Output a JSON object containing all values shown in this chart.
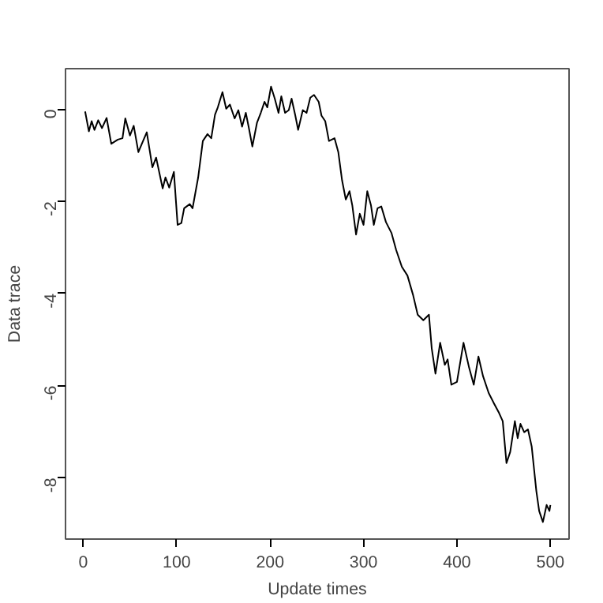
{
  "chart_data": {
    "type": "line",
    "xlabel": "Update times",
    "ylabel": "Data trace",
    "xlim": [
      -19,
      520
    ],
    "ylim": [
      -9.33,
      0.88
    ],
    "xticks": [
      0,
      100,
      200,
      300,
      400,
      500
    ],
    "yticks": [
      0,
      -2,
      -4,
      -6,
      -8
    ],
    "grid": false,
    "marker": "none",
    "line_style": "solid",
    "series": [
      {
        "color": "#000000",
        "x": [
          2,
          6,
          9,
          12,
          16,
          20,
          25,
          30,
          37,
          42,
          45,
          50,
          54,
          59,
          64,
          68,
          74,
          78,
          85,
          88,
          92,
          97,
          101,
          105,
          108,
          114,
          117,
          123,
          128,
          133,
          137,
          141,
          144,
          149,
          153,
          157,
          162,
          166,
          170,
          174,
          177,
          181,
          186,
          190,
          194,
          197,
          201,
          205,
          209,
          212,
          216,
          220,
          223,
          227,
          230,
          235,
          239,
          243,
          247,
          252,
          255,
          259,
          263,
          269,
          273,
          277,
          281,
          285,
          288,
          292,
          296,
          300,
          304,
          308,
          311,
          315,
          319,
          324,
          330,
          335,
          341,
          347,
          353,
          358,
          364,
          370,
          373,
          377,
          382,
          387,
          390,
          394,
          400,
          407,
          413,
          418,
          423,
          428,
          434,
          440,
          445,
          449,
          453,
          457,
          462,
          465,
          468,
          472,
          476,
          480,
          485,
          488,
          492,
          496,
          499,
          500
        ],
        "values": [
          -0.05,
          -0.48,
          -0.26,
          -0.45,
          -0.24,
          -0.41,
          -0.19,
          -0.75,
          -0.66,
          -0.63,
          -0.2,
          -0.57,
          -0.36,
          -0.93,
          -0.69,
          -0.5,
          -1.26,
          -1.05,
          -1.72,
          -1.48,
          -1.7,
          -1.36,
          -2.51,
          -2.47,
          -2.15,
          -2.06,
          -2.15,
          -1.48,
          -0.69,
          -0.54,
          -0.63,
          -0.12,
          0.04,
          0.37,
          0.01,
          0.1,
          -0.2,
          -0.02,
          -0.38,
          -0.08,
          -0.38,
          -0.81,
          -0.29,
          -0.08,
          0.16,
          0.04,
          0.49,
          0.23,
          -0.08,
          0.28,
          -0.08,
          -0.02,
          0.23,
          -0.14,
          -0.45,
          -0.02,
          -0.08,
          0.25,
          0.31,
          0.16,
          -0.14,
          -0.26,
          -0.69,
          -0.63,
          -0.93,
          -1.54,
          -1.96,
          -1.78,
          -2.09,
          -2.72,
          -2.27,
          -2.51,
          -1.78,
          -2.09,
          -2.51,
          -2.15,
          -2.11,
          -2.45,
          -2.69,
          -3.06,
          -3.42,
          -3.61,
          -4.03,
          -4.46,
          -4.58,
          -4.46,
          -5.19,
          -5.74,
          -5.07,
          -5.55,
          -5.43,
          -5.98,
          -5.92,
          -5.07,
          -5.61,
          -5.98,
          -5.37,
          -5.8,
          -6.16,
          -6.4,
          -6.59,
          -6.77,
          -7.68,
          -7.44,
          -6.77,
          -7.14,
          -6.83,
          -7.01,
          -6.95,
          -7.32,
          -8.29,
          -8.72,
          -8.96,
          -8.59,
          -8.72,
          -8.59
        ]
      }
    ]
  }
}
